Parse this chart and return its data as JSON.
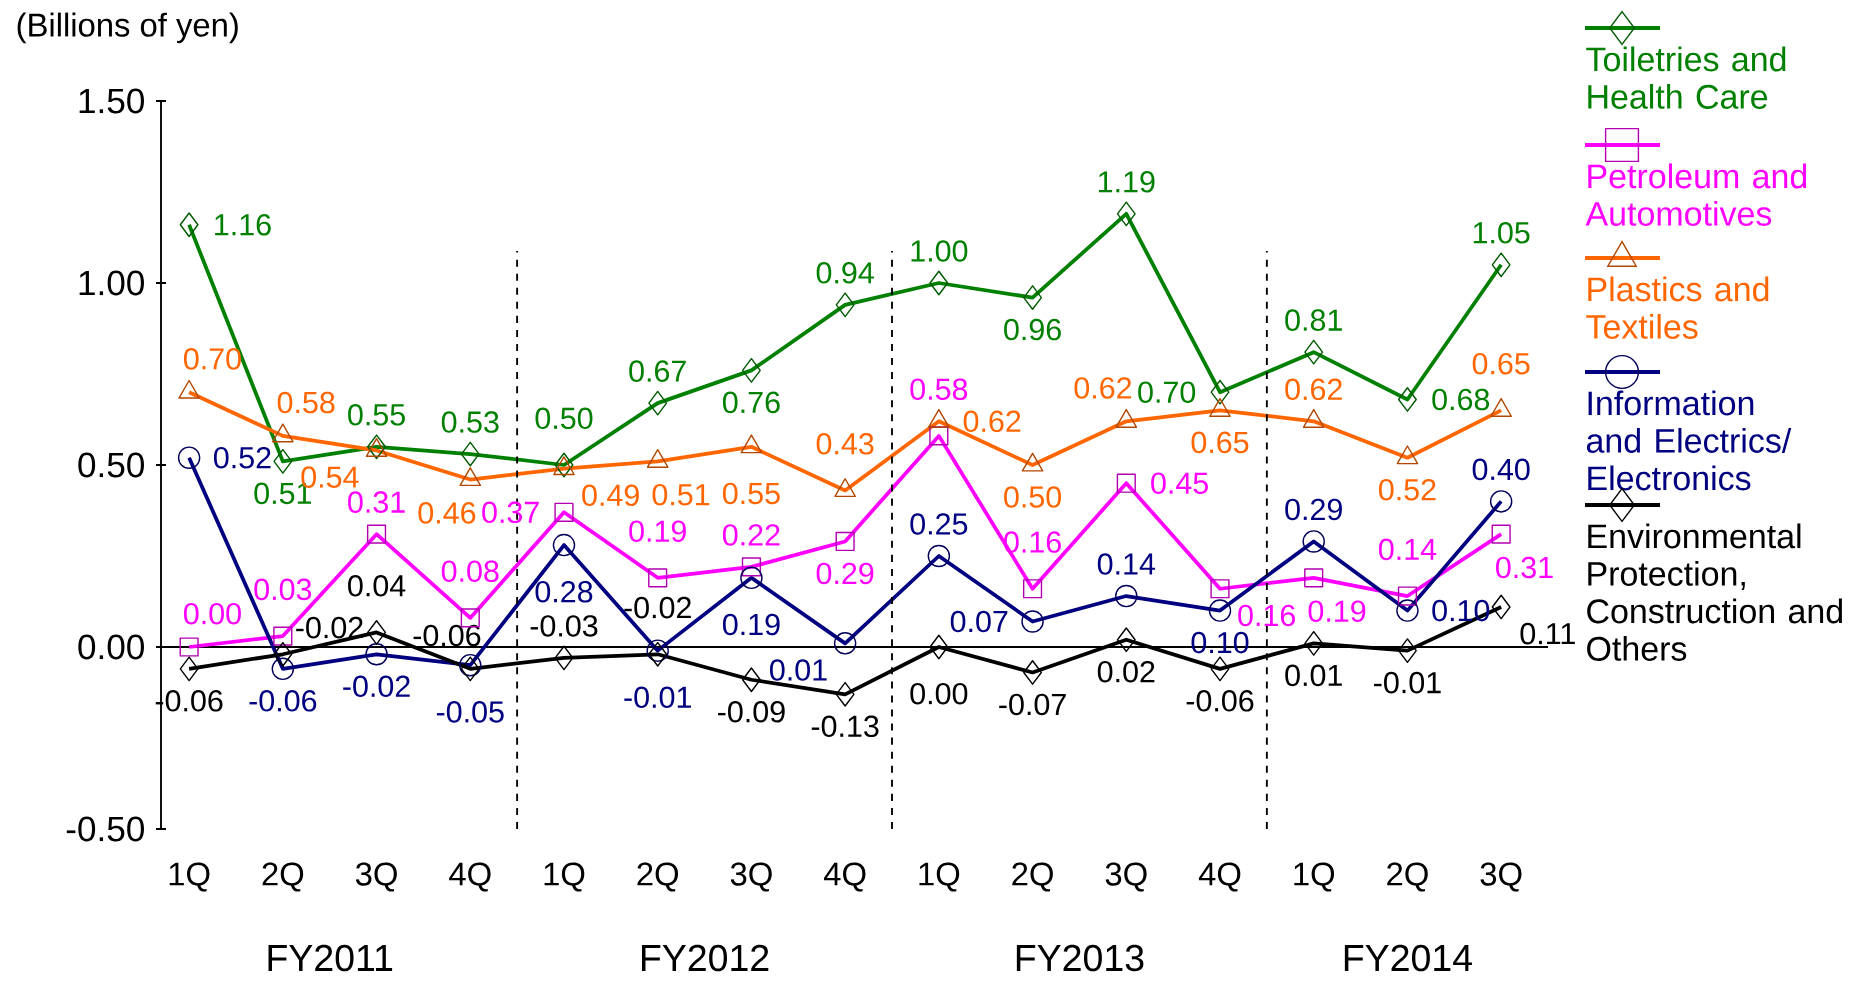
{
  "chart_data": {
    "type": "line",
    "ylabel": "(Billions of yen)",
    "categories": [
      "1Q",
      "2Q",
      "3Q",
      "4Q",
      "1Q",
      "2Q",
      "3Q",
      "4Q",
      "1Q",
      "2Q",
      "3Q",
      "4Q",
      "1Q",
      "2Q",
      "3Q"
    ],
    "annotations": [
      "FY2011",
      "FY2012",
      "FY2013",
      "FY2014"
    ],
    "ylim": [
      -0.5,
      1.5
    ],
    "yticks": [
      {
        "value": -0.5,
        "label": "-0.50"
      },
      {
        "value": 0,
        "label": "0.00"
      },
      {
        "value": 0.5,
        "label": "0.50"
      },
      {
        "value": 1.0,
        "label": "1.00"
      },
      {
        "value": 1.5,
        "label": "1.50"
      }
    ],
    "legend": "right",
    "line_style": "solid",
    "series": [
      {
        "name": "Toiletries and Health Care",
        "color": "#008000",
        "marker": "diamond",
        "values": [
          1.16,
          0.51,
          0.55,
          0.53,
          0.5,
          0.67,
          0.76,
          0.94,
          1.0,
          0.96,
          1.19,
          0.7,
          0.81,
          0.68,
          1.05
        ],
        "value_labels": [
          "1.16",
          "0.51",
          "0.55",
          "0.53",
          "0.50",
          "0.67",
          "0.76",
          "0.94",
          "1.00",
          "0.96",
          "1.19",
          "0.70",
          "0.81",
          "0.68",
          "1.05"
        ]
      },
      {
        "name": "Petroleum and Automotives",
        "color": "#ff00ff",
        "marker": "square",
        "values": [
          0.0,
          0.03,
          0.31,
          0.08,
          0.37,
          0.19,
          0.22,
          0.29,
          0.58,
          0.16,
          0.45,
          0.16,
          0.19,
          0.14,
          0.31
        ],
        "value_labels": [
          "0.00",
          "0.03",
          "0.31",
          "0.08",
          "0.37",
          "0.19",
          "0.22",
          "0.29",
          "0.58",
          "0.16",
          "0.45",
          "0.16",
          "0.19",
          "0.14",
          "0.31"
        ]
      },
      {
        "name": "Plastics and Textiles",
        "color": "#ff6600",
        "marker": "triangle",
        "values": [
          0.7,
          0.58,
          0.54,
          0.46,
          0.49,
          0.51,
          0.55,
          0.43,
          0.62,
          0.5,
          0.62,
          0.65,
          0.62,
          0.52,
          0.65
        ],
        "value_labels": [
          "0.70",
          "0.58",
          "0.54",
          "0.46",
          "0.49",
          "0.51",
          "0.55",
          "0.43",
          "0.62",
          "0.50",
          "0.62",
          "0.65",
          "0.62",
          "0.52",
          "0.65"
        ]
      },
      {
        "name": "Information and Electrics/ Electronics",
        "color": "#000080",
        "marker": "circle",
        "values": [
          0.52,
          -0.06,
          -0.02,
          -0.05,
          0.28,
          -0.01,
          0.19,
          0.01,
          0.25,
          0.07,
          0.14,
          0.1,
          0.29,
          0.1,
          0.4
        ],
        "value_labels": [
          "0.52",
          "-0.06",
          "-0.02",
          "-0.05",
          "0.28",
          "-0.01",
          "0.19",
          "0.01",
          "0.25",
          "0.07",
          "0.14",
          "0.10",
          "0.29",
          "0.10",
          "0.40"
        ]
      },
      {
        "name": "Environmental Protection, Construction and Others",
        "color": "#000000",
        "marker": "diamond",
        "values": [
          -0.06,
          -0.02,
          0.04,
          -0.06,
          -0.03,
          -0.02,
          -0.09,
          -0.13,
          0.0,
          -0.07,
          0.02,
          -0.06,
          0.01,
          -0.01,
          0.11
        ],
        "value_labels": [
          "-0.06",
          "-0.02",
          "0.04",
          "-0.06",
          "-0.03",
          "-0.02",
          "-0.09",
          "-0.13",
          "0.00",
          "-0.07",
          "0.02",
          "-0.06",
          "0.01",
          "-0.01",
          "0.11"
        ]
      }
    ]
  }
}
